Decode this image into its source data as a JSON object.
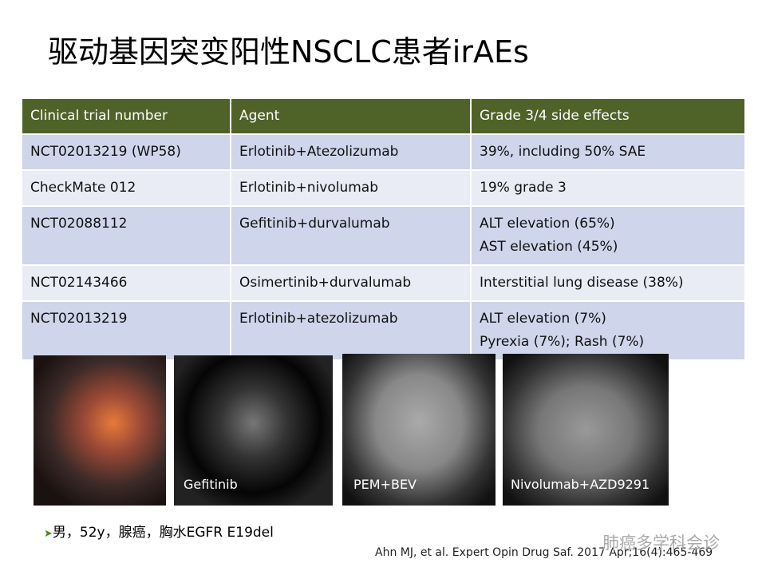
{
  "title": "驱动基因突变阳性NSCLC患者irAEs",
  "table": {
    "header": [
      "Clinical trial number",
      "Agent",
      "Grade 3/4 side effects"
    ],
    "rows": [
      [
        [
          "NCT02013219 (WP58)"
        ],
        [
          "Erlotinib+Atezolizumab"
        ],
        [
          "39%, including 50% SAE"
        ]
      ],
      [
        [
          "CheckMate 012"
        ],
        [
          "Erlotinib+nivolumab"
        ],
        [
          "19% grade 3"
        ]
      ],
      [
        [
          "NCT02088112"
        ],
        [
          "Gefitinib+durvalumab"
        ],
        [
          "ALT elevation (65%)",
          "AST elevation (45%)"
        ]
      ],
      [
        [
          "NCT02143466"
        ],
        [
          "Osimertinib+durvalumab"
        ],
        [
          "Interstitial lung disease (38%)"
        ]
      ],
      [
        [
          "NCT02013219"
        ],
        [
          "Erlotinib+atezolizumab"
        ],
        [
          "ALT elevation (7%)",
          "Pyrexia (7%); Rash (7%)"
        ]
      ]
    ]
  },
  "images": [
    "Gefitinib",
    "PEM+BEV",
    "Nivolumab+AZD9291"
  ],
  "bullet": "男，52y，腺癌，胸水EGFR  E19del",
  "citation": "Ahn MJ, et al. Expert Opin Drug Saf. 2017 Apr;16(4):465-469",
  "watermark": "肺癌多学科会诊"
}
